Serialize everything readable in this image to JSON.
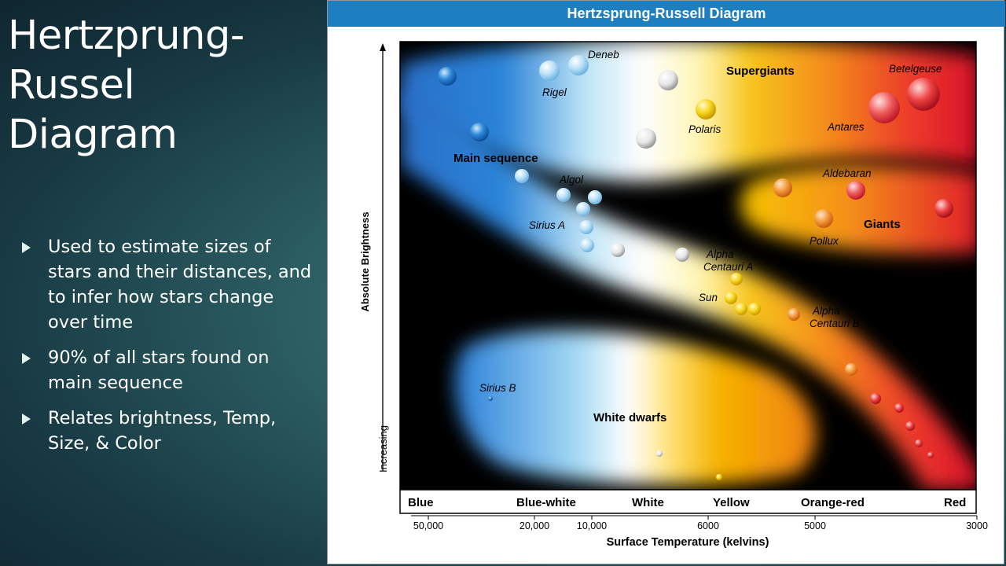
{
  "slide": {
    "title_lines": [
      "Hertzprung-",
      "Russel",
      "Diagram"
    ],
    "bullets": [
      "Used to estimate sizes of stars and their distances, and to infer how stars change over time",
      "90% of all stars found on main sequence",
      "Relates brightness, Temp, Size, & Color"
    ]
  },
  "diagram": {
    "header": "Hertzsprung-Russell Diagram",
    "y_axis_label": "Absolute Brightness",
    "y_axis_increasing": "Increasing",
    "x_axis_label": "Surface Temperature (kelvins)",
    "color_labels": [
      "Blue",
      "Blue-white",
      "White",
      "Yellow",
      "Orange-red",
      "Red"
    ],
    "temperature_ticks": [
      "50,000",
      "20,000",
      "10,000",
      "6000",
      "5000",
      "3000"
    ],
    "regions": {
      "supergiants": "Supergiants",
      "main_sequence": "Main sequence",
      "giants": "Giants",
      "white_dwarfs": "White dwarfs"
    },
    "stars": {
      "deneb": "Deneb",
      "rigel": "Rigel",
      "betelgeuse": "Betelgeuse",
      "polaris": "Polaris",
      "antares": "Antares",
      "algol": "Algol",
      "aldebaran": "Aldebaran",
      "sirius_a": "Sirius A",
      "pollux": "Pollux",
      "alpha_centauri_a_1": "Alpha",
      "alpha_centauri_a_2": "Centauri A",
      "sun": "Sun",
      "alpha_centauri_b_1": "Alpha",
      "alpha_centauri_b_2": "Centauri B",
      "sirius_b": "Sirius B"
    },
    "colors": {
      "header": "#1d7fbf",
      "blue": "#1f6fd0",
      "white": "#ffffff",
      "yellow": "#f6c400",
      "orange": "#f07a1a",
      "red": "#e01b2a"
    }
  }
}
